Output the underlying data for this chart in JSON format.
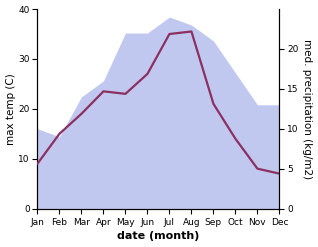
{
  "months": [
    "Jan",
    "Feb",
    "Mar",
    "Apr",
    "May",
    "Jun",
    "Jul",
    "Aug",
    "Sep",
    "Oct",
    "Nov",
    "Dec"
  ],
  "month_positions": [
    0,
    1,
    2,
    3,
    4,
    5,
    6,
    7,
    8,
    9,
    10,
    11
  ],
  "temperature": [
    9.0,
    15.0,
    19.0,
    23.5,
    23.0,
    27.0,
    35.0,
    35.5,
    21.0,
    14.0,
    8.0,
    7.0
  ],
  "precipitation": [
    10.0,
    9.0,
    14.0,
    16.0,
    22.0,
    22.0,
    24.0,
    23.0,
    21.0,
    17.0,
    13.0,
    13.0
  ],
  "temp_color": "#8b3060",
  "precip_fill_color": "#c0c8f0",
  "precip_fill_alpha": 1.0,
  "ylabel_left": "max temp (C)",
  "ylabel_right": "med. precipitation (kg/m2)",
  "xlabel": "date (month)",
  "ylim_left": [
    0,
    40
  ],
  "ylim_right": [
    0,
    25
  ],
  "yticks_left": [
    0,
    10,
    20,
    30,
    40
  ],
  "yticks_right": [
    0,
    5,
    10,
    15,
    20
  ],
  "background_color": "#ffffff",
  "label_fontsize": 7.5,
  "tick_fontsize": 6.5,
  "xlabel_fontsize": 8,
  "linewidth": 1.6
}
